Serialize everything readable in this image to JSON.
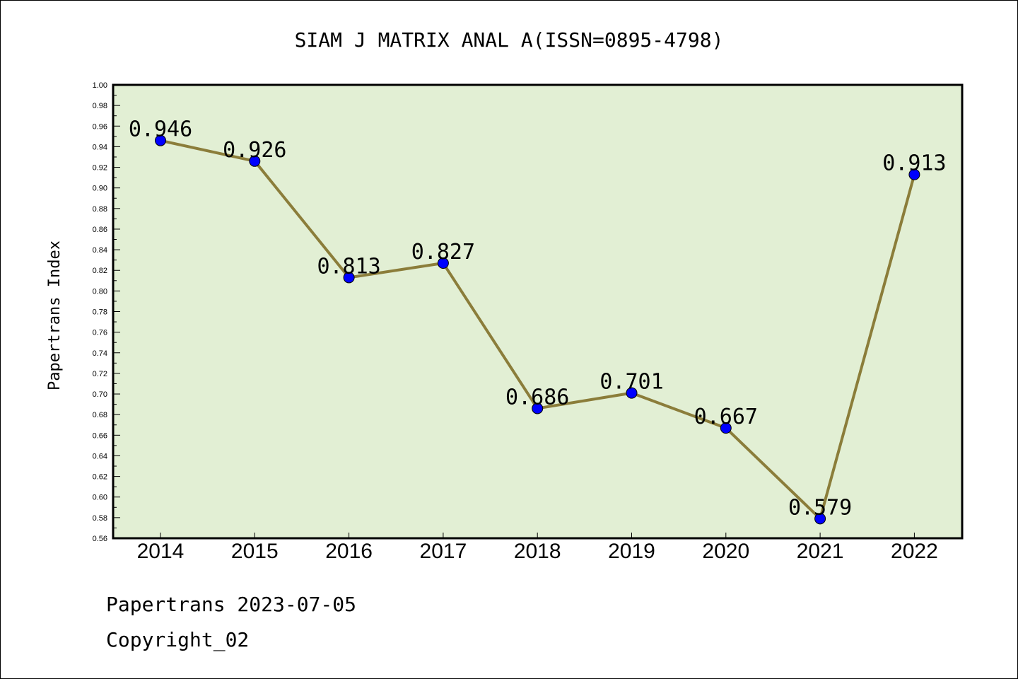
{
  "chart_data": {
    "type": "line",
    "title": "SIAM J MATRIX ANAL A(ISSN=0895-4798)",
    "xlabel": "",
    "ylabel": "Papertrans Index",
    "categories": [
      "2014",
      "2015",
      "2016",
      "2017",
      "2018",
      "2019",
      "2020",
      "2021",
      "2022"
    ],
    "series": [
      {
        "values": [
          0.946,
          0.926,
          0.813,
          0.827,
          0.686,
          0.701,
          0.667,
          0.579,
          0.913
        ]
      }
    ],
    "data_labels": [
      "0.946",
      "0.926",
      "0.813",
      "0.827",
      "0.686",
      "0.701",
      "0.667",
      "0.579",
      "0.913"
    ],
    "ylim": [
      0.56,
      1.0
    ],
    "y_ticks": [
      "0.56",
      "0.58",
      "0.60",
      "0.62",
      "0.64",
      "0.66",
      "0.68",
      "0.70",
      "0.72",
      "0.74",
      "0.76",
      "0.78",
      "0.80",
      "0.82",
      "0.84",
      "0.86",
      "0.88",
      "0.90",
      "0.92",
      "0.94",
      "0.96",
      "0.98",
      "1.00"
    ],
    "grid": false,
    "legend": "none",
    "colors": {
      "plot_background": "#e2efd4",
      "line": "#8b7d3a",
      "marker": "#0000ff"
    }
  },
  "footer": {
    "line1": "Papertrans 2023-07-05",
    "line2": "Copyright_02"
  }
}
